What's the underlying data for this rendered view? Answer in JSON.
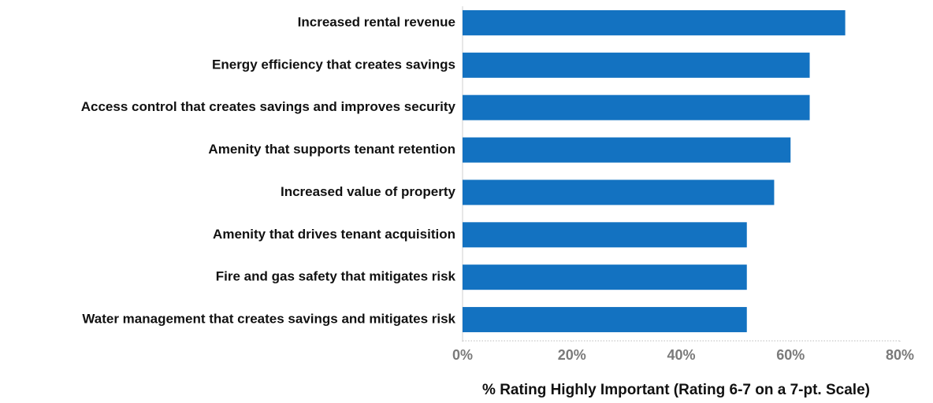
{
  "chart_data": {
    "type": "bar",
    "orientation": "horizontal",
    "categories": [
      "Increased rental revenue",
      "Energy efficiency that creates savings",
      "Access control that creates savings and improves security",
      "Amenity that supports tenant retention",
      "Increased value of property",
      "Amenity that drives tenant acquisition",
      "Fire and gas safety that mitigates risk",
      "Water management that creates savings and mitigates risk"
    ],
    "values": [
      70,
      63.5,
      63.5,
      60,
      57,
      52,
      52,
      52
    ],
    "color": "#1372c1",
    "xlim": [
      0,
      80
    ],
    "xticks": [
      {
        "value": 0,
        "label": "0%"
      },
      {
        "value": 20,
        "label": "20%"
      },
      {
        "value": 40,
        "label": "40%"
      },
      {
        "value": 60,
        "label": "60%"
      },
      {
        "value": 80,
        "label": "80%"
      }
    ],
    "x_label": "% Rating Highly Important (Rating 6-7 on a 7-pt. Scale)"
  }
}
